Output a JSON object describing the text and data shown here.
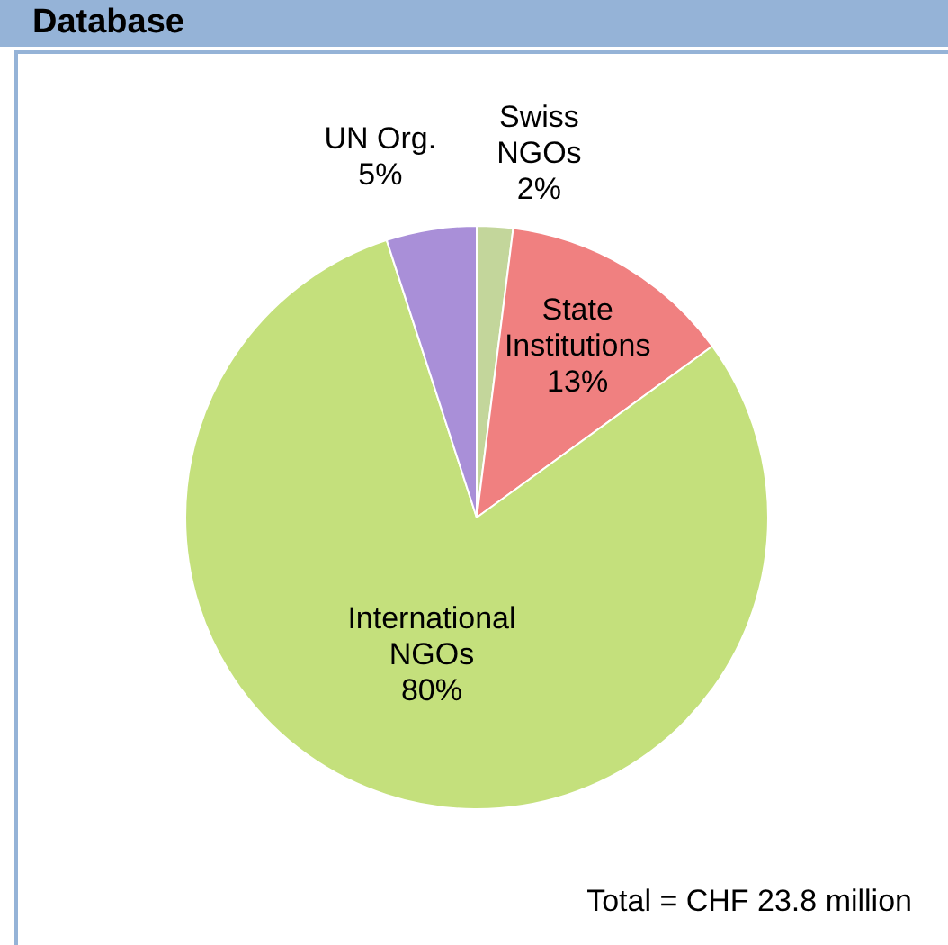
{
  "chart_data": {
    "type": "pie",
    "title": "Database",
    "categories": [
      "Swiss NGOs",
      "State Institutions",
      "International NGOs",
      "UN Org."
    ],
    "values": [
      2,
      13,
      80,
      5
    ],
    "colors": [
      "#c3d69b",
      "#f08080",
      "#c4e07c",
      "#a98fd8"
    ],
    "value_labels": [
      "2%",
      "13%",
      "80%",
      "5%"
    ],
    "legend": false,
    "annotations": [
      "Total = CHF 23.8 million"
    ]
  }
}
